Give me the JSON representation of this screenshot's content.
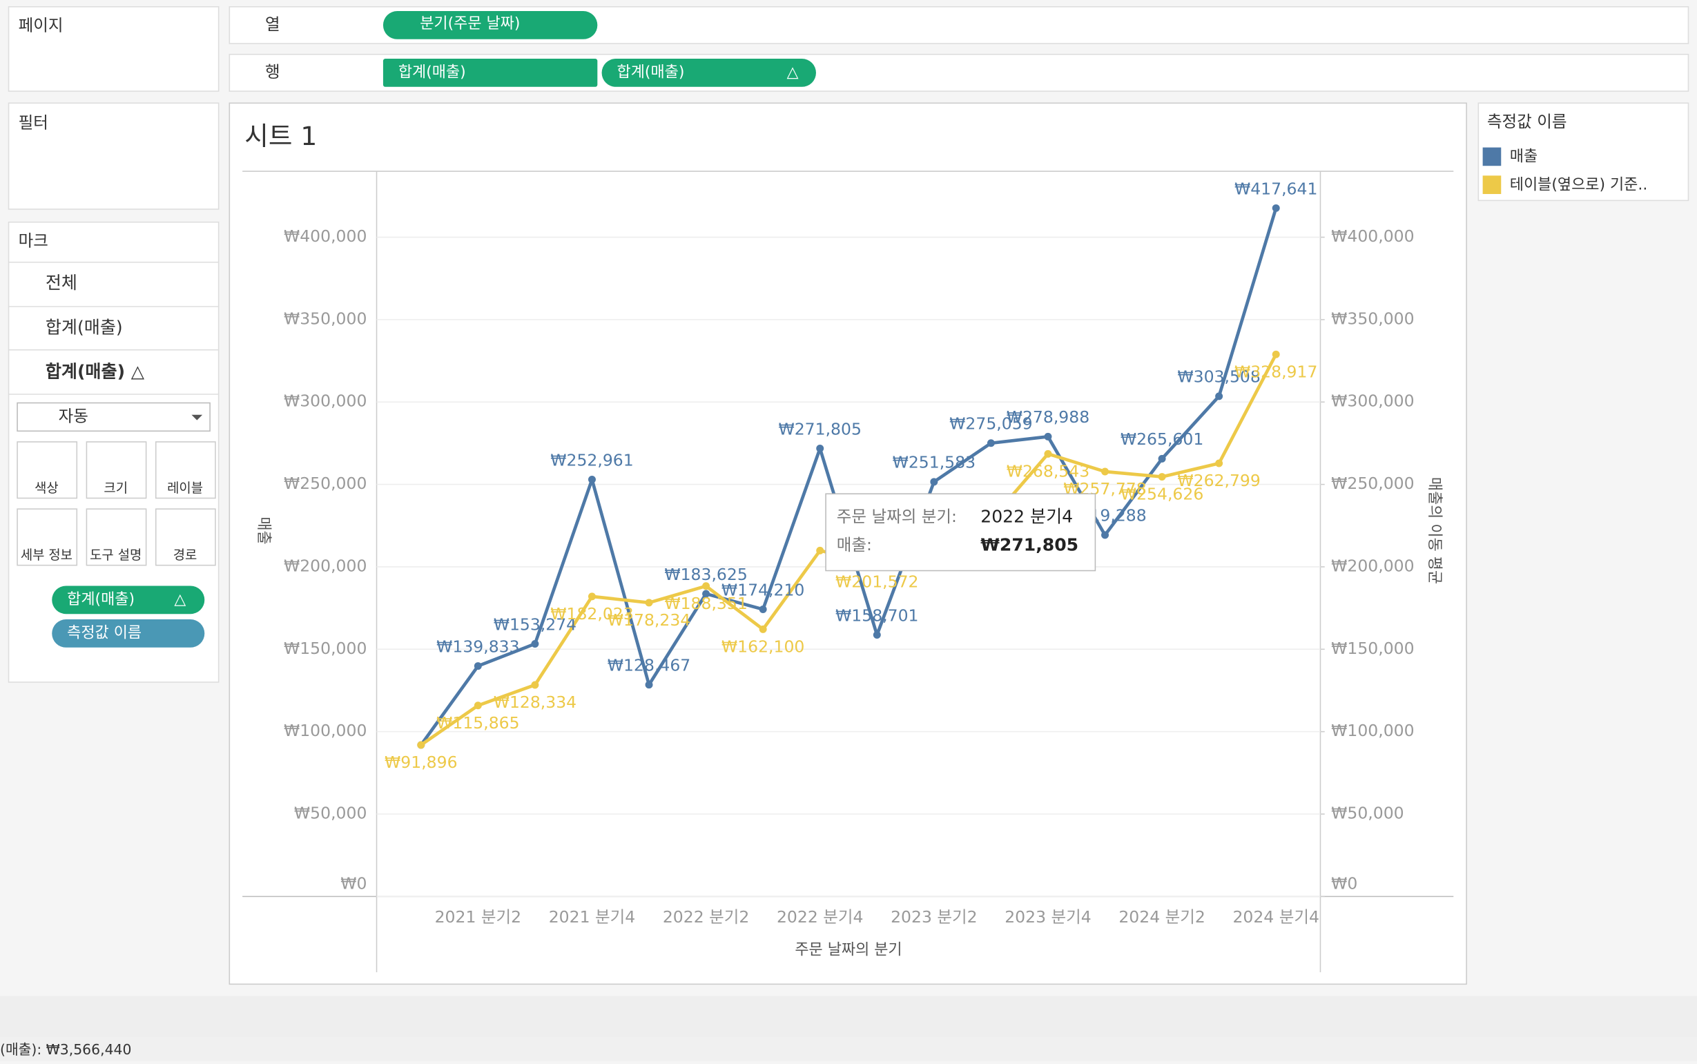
{
  "ui": {
    "pages": "페이지",
    "filters": "필터",
    "marks": "마크",
    "marks_all": "전체",
    "marks_m1": "합계(매출)",
    "marks_m2": "합계(매출) △",
    "mark_type": "자동",
    "mark_buttons": [
      "색상",
      "크기",
      "레이블",
      "세부 정보",
      "도구 설명",
      "경로"
    ],
    "mark_pills": [
      "합계(매출)",
      "△",
      "측정값 이름"
    ],
    "columns_label": "열",
    "rows_label": "행",
    "columns_pill": "분기(주문 날짜)",
    "rows_pills": [
      "합계(매출)",
      "합계(매출)",
      "△"
    ],
    "legend_title": "측정값 이름",
    "status": "(매출): ₩3,566,440",
    "tooltip": {
      "field": "주문 날짜의 분기:",
      "field_value": "2022 분기4",
      "measure": "매출:",
      "measure_value": "₩271,805"
    }
  },
  "chart_data": {
    "type": "line",
    "title": "시트 1",
    "x_label": "주문 날짜의 분기",
    "y_label": "매출",
    "y2_label": "매출의 이동 평균",
    "categories": [
      null,
      "2021 분기2",
      null,
      "2021 분기4",
      null,
      "2022 분기2",
      null,
      "2022 분기4",
      null,
      "2023 분기2",
      null,
      "2023 분기4",
      null,
      "2024 분기2",
      null,
      "2024 분기4"
    ],
    "ylim": [
      0,
      440000
    ],
    "y2lim": [
      0,
      440000
    ],
    "yticks": [
      {
        "value": 0,
        "label": "₩0"
      },
      {
        "value": 50000,
        "label": "₩50,000"
      },
      {
        "value": 100000,
        "label": "₩100,000"
      },
      {
        "value": 150000,
        "label": "₩150,000"
      },
      {
        "value": 200000,
        "label": "₩200,000"
      },
      {
        "value": 250000,
        "label": "₩250,000"
      },
      {
        "value": 300000,
        "label": "₩300,000"
      },
      {
        "value": 350000,
        "label": "₩350,000"
      },
      {
        "value": 400000,
        "label": "₩400,000"
      }
    ],
    "y2ticks": [
      {
        "value": 0,
        "label": "₩0"
      },
      {
        "value": 50000,
        "label": "₩50,000"
      },
      {
        "value": 100000,
        "label": "₩100,000"
      },
      {
        "value": 150000,
        "label": "₩150,000"
      },
      {
        "value": 200000,
        "label": "₩200,000"
      },
      {
        "value": 250000,
        "label": "₩250,000"
      },
      {
        "value": 300000,
        "label": "₩300,000"
      },
      {
        "value": 350000,
        "label": "₩350,000"
      },
      {
        "value": 400000,
        "label": "₩400,000"
      }
    ],
    "grid": true,
    "series": [
      {
        "name": "매출",
        "color": "#4e79a7",
        "values": [
          91896,
          139833,
          153274,
          252961,
          128467,
          183625,
          174210,
          271805,
          158701,
          251583,
          275059,
          278988,
          219288,
          265601,
          303508,
          417641
        ],
        "value_labels": [
          null,
          "₩139,833",
          "₩153,274",
          "₩252,961",
          "₩128,467",
          "₩183,625",
          "₩174,210",
          "₩271,805",
          "₩158,701",
          "₩251,583",
          "₩275,059",
          "₩278,988",
          "₩219,288",
          "₩265,601",
          "₩303,508",
          "₩417,641"
        ]
      },
      {
        "name": "테이블(옆으로) 기준..",
        "color": "#edc948",
        "axis": "y2",
        "values": [
          91896,
          115865,
          128334,
          182023,
          178234,
          188351,
          162100,
          209880,
          201572,
          227363,
          228448,
          268543,
          257778,
          254626,
          262799,
          328917
        ],
        "value_labels": [
          "₩91,896",
          "₩115,865",
          "₩128,334",
          "₩182,023",
          "₩178,234",
          "₩188,351",
          "₩162,100",
          null,
          "₩201,572",
          null,
          null,
          "₩268,543",
          "₩257,778",
          "₩254,626",
          "₩262,799",
          "₩328,917"
        ]
      }
    ]
  }
}
